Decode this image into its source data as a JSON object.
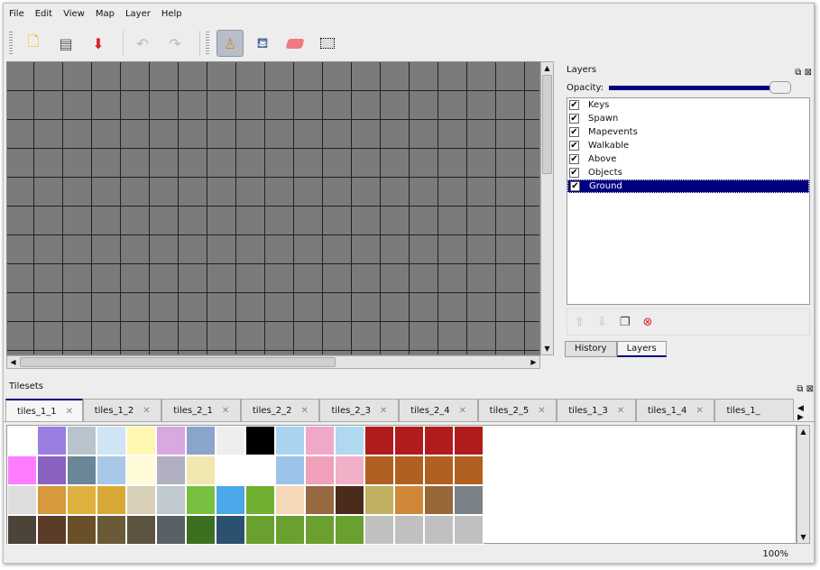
{
  "menu": [
    "File",
    "Edit",
    "View",
    "Map",
    "Layer",
    "Help"
  ],
  "toolbar": {
    "new": "new-file",
    "open": "open",
    "save": "save",
    "undo": "undo",
    "redo": "redo",
    "stamp": "stamp-brush",
    "fill": "bucket-fill",
    "eraser": "eraser",
    "select": "rect-select"
  },
  "layers_panel": {
    "title": "Layers",
    "opacity_label": "Opacity:",
    "opacity": 1.0,
    "items": [
      {
        "name": "Keys",
        "visible": true
      },
      {
        "name": "Spawn",
        "visible": true
      },
      {
        "name": "Mapevents",
        "visible": true
      },
      {
        "name": "Walkable",
        "visible": true
      },
      {
        "name": "Above",
        "visible": true
      },
      {
        "name": "Objects",
        "visible": true
      },
      {
        "name": "Ground",
        "visible": true,
        "selected": true
      }
    ],
    "tabs": [
      "History",
      "Layers"
    ],
    "active_tab": "Layers"
  },
  "tilesets": {
    "title": "Tilesets",
    "tabs": [
      "tiles_1_1",
      "tiles_1_2",
      "tiles_2_1",
      "tiles_2_2",
      "tiles_2_3",
      "tiles_2_4",
      "tiles_2_5",
      "tiles_1_3",
      "tiles_1_4",
      "tiles_1_"
    ],
    "active_tab": "tiles_1_1"
  },
  "status": {
    "zoom": "100%"
  },
  "colors": {
    "selection": "#00007f",
    "canvas": "#7b7b7b"
  }
}
